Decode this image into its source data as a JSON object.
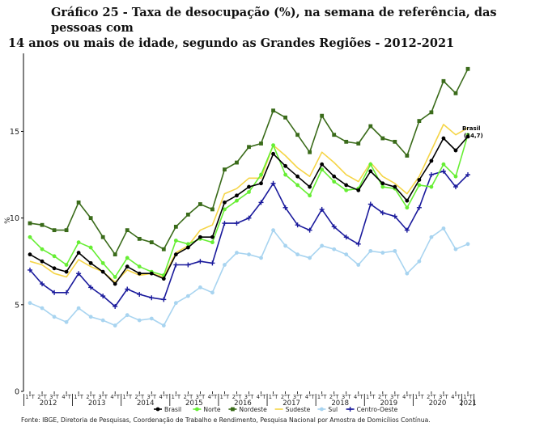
{
  "title": {
    "line1": "Gráfico 25 - Taxa de desocupação (%), na semana de referência, das pessoas com",
    "line2": "14 anos ou mais de idade, segundo as Grandes Regiões - 2012-2021"
  },
  "source": "Fonte: IBGE, Diretoria de Pesquisas, Coordenação de Trabalho e Rendimento, Pesquisa Nacional por Amostra de Domicílios Contínua.",
  "chart_data": {
    "type": "line",
    "ylabel": "%",
    "ylim": [
      0,
      19.5
    ],
    "yticks": [
      0,
      5,
      10,
      15
    ],
    "x_quarter_labels": [
      "1°T",
      "2°T",
      "3°T",
      "4°T",
      "1°T",
      "2°T",
      "3°T",
      "4°T",
      "1°T",
      "2°T",
      "3°T",
      "4°T",
      "1°T",
      "2°T",
      "3°T",
      "4°T",
      "1°T",
      "2°T",
      "3°T",
      "4°T",
      "1°T",
      "2°T",
      "3°T",
      "4°T",
      "1°T",
      "2°T",
      "3°T",
      "4°T",
      "1°T",
      "2°T",
      "3°T",
      "4°T",
      "1°T",
      "2°T",
      "3°T",
      "4°T",
      "1°T"
    ],
    "years": [
      {
        "label": "2012",
        "start": 0,
        "count": 4
      },
      {
        "label": "2013",
        "start": 4,
        "count": 4
      },
      {
        "label": "2014",
        "start": 8,
        "count": 4
      },
      {
        "label": "2015",
        "start": 12,
        "count": 4
      },
      {
        "label": "2016",
        "start": 16,
        "count": 4
      },
      {
        "label": "2017",
        "start": 20,
        "count": 4
      },
      {
        "label": "2018",
        "start": 24,
        "count": 4
      },
      {
        "label": "2019",
        "start": 28,
        "count": 4
      },
      {
        "label": "2020",
        "start": 32,
        "count": 4
      },
      {
        "label": "2021",
        "start": 36,
        "count": 1
      }
    ],
    "series": [
      {
        "name": "Brasil",
        "color": "#000000",
        "marker": "circle",
        "values": [
          7.9,
          7.5,
          7.1,
          6.9,
          8.0,
          7.4,
          6.9,
          6.2,
          7.2,
          6.8,
          6.8,
          6.5,
          7.9,
          8.3,
          8.9,
          8.9,
          10.9,
          11.3,
          11.8,
          12.0,
          13.7,
          13.0,
          12.4,
          11.8,
          13.1,
          12.4,
          11.9,
          11.6,
          12.7,
          12.0,
          11.8,
          11.0,
          12.2,
          13.3,
          14.6,
          13.9,
          14.7
        ]
      },
      {
        "name": "Norte",
        "color": "#66ee33",
        "marker": "circle",
        "values": [
          8.9,
          8.2,
          7.8,
          7.3,
          8.6,
          8.3,
          7.4,
          6.6,
          7.7,
          7.2,
          6.9,
          6.7,
          8.7,
          8.5,
          8.8,
          8.6,
          10.5,
          11.0,
          11.5,
          12.5,
          14.2,
          12.5,
          11.9,
          11.3,
          12.8,
          12.1,
          11.6,
          11.7,
          13.1,
          11.8,
          11.7,
          10.6,
          11.9,
          11.8,
          13.1,
          12.4,
          14.8
        ]
      },
      {
        "name": "Nordeste",
        "color": "#3a6b1a",
        "marker": "square",
        "values": [
          9.7,
          9.6,
          9.3,
          9.3,
          10.9,
          10.0,
          8.9,
          7.9,
          9.3,
          8.8,
          8.6,
          8.2,
          9.5,
          10.2,
          10.8,
          10.5,
          12.8,
          13.2,
          14.1,
          14.3,
          16.2,
          15.8,
          14.8,
          13.8,
          15.9,
          14.8,
          14.4,
          14.3,
          15.3,
          14.6,
          14.4,
          13.6,
          15.6,
          16.1,
          17.9,
          17.2,
          18.6
        ]
      },
      {
        "name": "Sudeste",
        "color": "#f5d547",
        "marker": "none",
        "values": [
          7.5,
          7.3,
          6.8,
          6.6,
          7.6,
          7.2,
          6.9,
          6.3,
          7.0,
          6.7,
          6.8,
          6.6,
          8.0,
          8.4,
          9.3,
          9.6,
          11.4,
          11.7,
          12.3,
          12.3,
          14.2,
          13.6,
          12.9,
          12.4,
          13.8,
          13.2,
          12.5,
          12.1,
          13.2,
          12.4,
          12.0,
          11.4,
          12.4,
          13.9,
          15.4,
          14.8,
          15.2
        ]
      },
      {
        "name": "Sul",
        "color": "#a8d4f0",
        "marker": "circle",
        "values": [
          5.1,
          4.8,
          4.3,
          4.0,
          4.8,
          4.3,
          4.1,
          3.8,
          4.4,
          4.1,
          4.2,
          3.8,
          5.1,
          5.5,
          6.0,
          5.7,
          7.3,
          8.0,
          7.9,
          7.7,
          9.3,
          8.4,
          7.9,
          7.7,
          8.4,
          8.2,
          7.9,
          7.3,
          8.1,
          8.0,
          8.1,
          6.8,
          7.5,
          8.9,
          9.4,
          8.2,
          8.5
        ]
      },
      {
        "name": "Centro-Oeste",
        "color": "#1a1a9c",
        "marker": "cross",
        "values": [
          7.0,
          6.2,
          5.7,
          5.7,
          6.8,
          6.0,
          5.5,
          4.9,
          5.9,
          5.6,
          5.4,
          5.3,
          7.3,
          7.3,
          7.5,
          7.4,
          9.7,
          9.7,
          10.0,
          10.9,
          12.0,
          10.6,
          9.6,
          9.3,
          10.5,
          9.5,
          8.9,
          8.5,
          10.8,
          10.3,
          10.1,
          9.3,
          10.6,
          12.5,
          12.7,
          11.8,
          12.5
        ]
      }
    ],
    "annotation": {
      "series": "Brasil",
      "text_line1": "Brasil",
      "text_line2": "(14,7)"
    },
    "legend_position": "bottom"
  }
}
